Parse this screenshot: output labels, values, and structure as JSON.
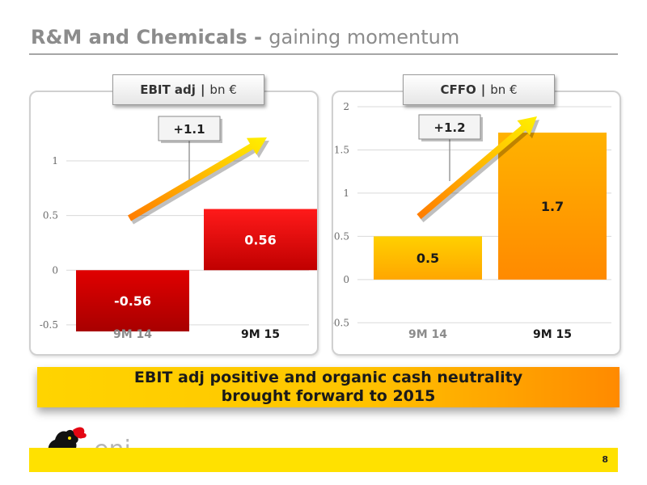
{
  "slide": {
    "title_bold": "R&M and Chemicals - ",
    "title_rest": "gaining momentum",
    "page_number": "8",
    "logo_text": "eni"
  },
  "banner": {
    "line1": "EBIT adj positive and organic cash neutrality",
    "line2": "brought forward to 2015"
  },
  "colors": {
    "title": "#8c8c8c",
    "ebit_negative": "#b30000",
    "ebit_positive": "#e60000",
    "cffo_bar": "#ff9900",
    "brand_yellow": "#ffe100"
  },
  "chart_data": [
    {
      "type": "bar",
      "tag": {
        "metric": "EBIT adj",
        "separator": "|",
        "unit": "bn €"
      },
      "categories": [
        "9M 14",
        "9M 15"
      ],
      "values": [
        -0.56,
        0.56
      ],
      "data_labels": [
        "-0.56",
        "0.56"
      ],
      "ylim": [
        -0.56,
        1.2
      ],
      "yticks": [
        -0.5,
        0,
        0.5,
        1
      ],
      "ytick_labels": [
        "-0.5",
        "0",
        "0.5",
        "1"
      ],
      "grid": true,
      "delta_label": "+1.1"
    },
    {
      "type": "bar",
      "tag": {
        "metric": "CFFO",
        "separator": "|",
        "unit": "bn €"
      },
      "categories": [
        "9M 14",
        "9M 15"
      ],
      "values": [
        0.5,
        1.7
      ],
      "data_labels": [
        "0.5",
        "1.7"
      ],
      "ylim": [
        -0.6,
        2.0
      ],
      "yticks": [
        -0.5,
        0,
        0.5,
        1,
        1.5,
        2
      ],
      "ytick_labels": [
        "-0.5",
        "0",
        "0.5",
        "1",
        "1.5",
        "2"
      ],
      "grid": true,
      "delta_label": "+1.2"
    }
  ]
}
